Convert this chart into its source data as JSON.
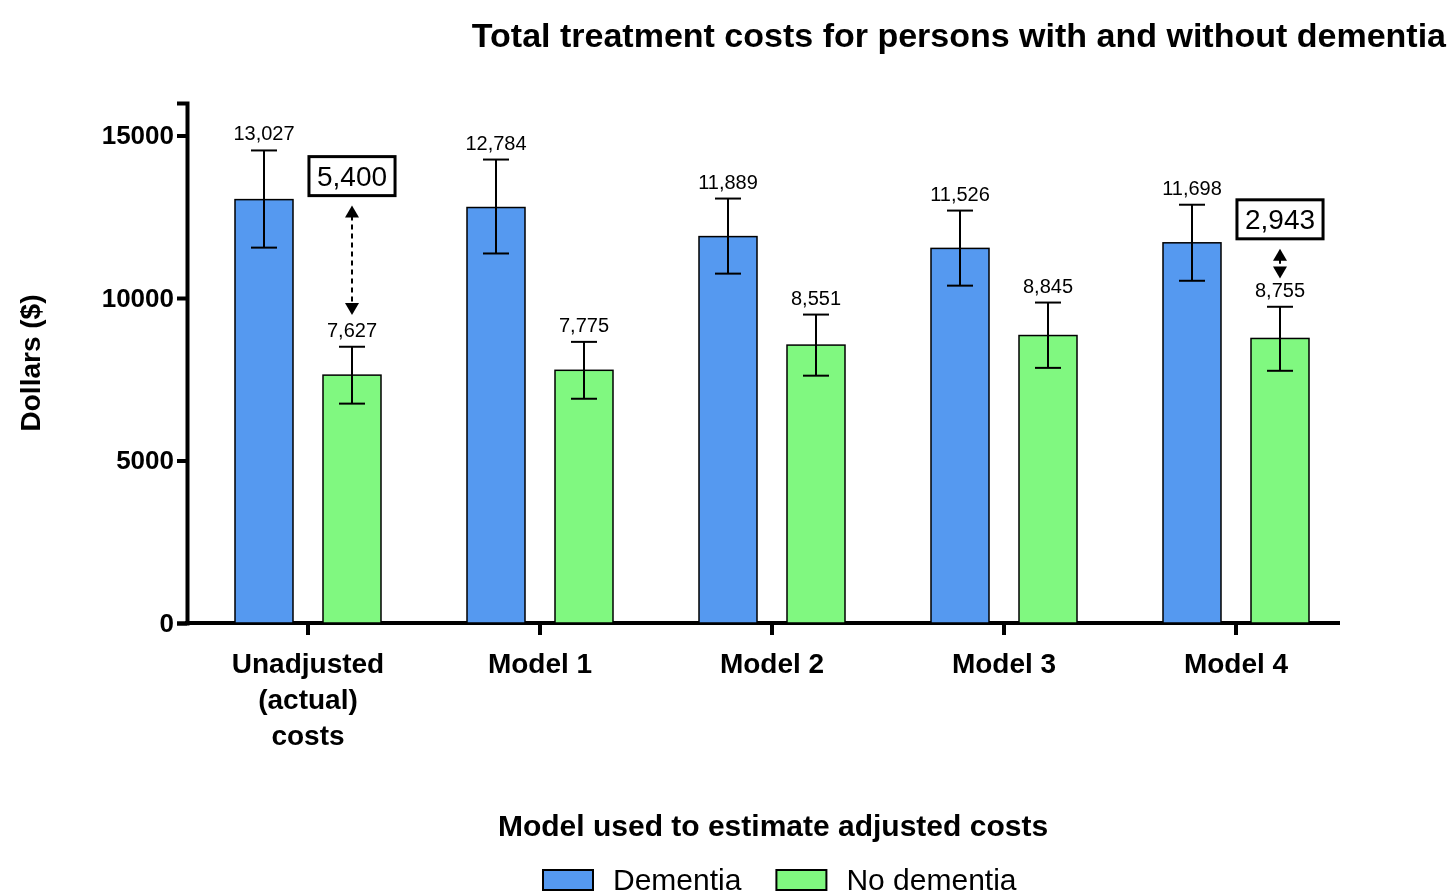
{
  "chart_data": {
    "type": "bar",
    "title": "Total treatment costs for persons with and without dementia",
    "xlabel": "Model used to estimate adjusted costs",
    "ylabel": "Dollars ($)",
    "categories": [
      "Unadjusted (actual) costs",
      "Model 1",
      "Model 2",
      "Model 3",
      "Model 4"
    ],
    "series": [
      {
        "name": "Dementia",
        "color": "#5599f0",
        "values": [
          13027,
          12784,
          11889,
          11526,
          11698
        ],
        "errors": [
          [
            11550,
            14540
          ],
          [
            11370,
            14260
          ],
          [
            10750,
            13060
          ],
          [
            10380,
            12690
          ],
          [
            10530,
            12870
          ]
        ],
        "value_labels": [
          "13,027",
          "12,784",
          "11,889",
          "11,526",
          "11,698"
        ]
      },
      {
        "name": "No dementia",
        "color": "#80f880",
        "values": [
          7627,
          7775,
          8551,
          8845,
          8755
        ],
        "errors": [
          [
            6750,
            8500
          ],
          [
            6900,
            8650
          ],
          [
            7610,
            9490
          ],
          [
            7850,
            9860
          ],
          [
            7760,
            9730
          ]
        ],
        "value_labels": [
          "7,627",
          "7,775",
          "8,551",
          "8,845",
          "8,755"
        ]
      }
    ],
    "ylim": [
      0,
      16000
    ],
    "yticks": [
      0,
      5000,
      10000,
      15000
    ],
    "legend": "bottom",
    "annotations": [
      "5,400",
      "2,943"
    ]
  }
}
